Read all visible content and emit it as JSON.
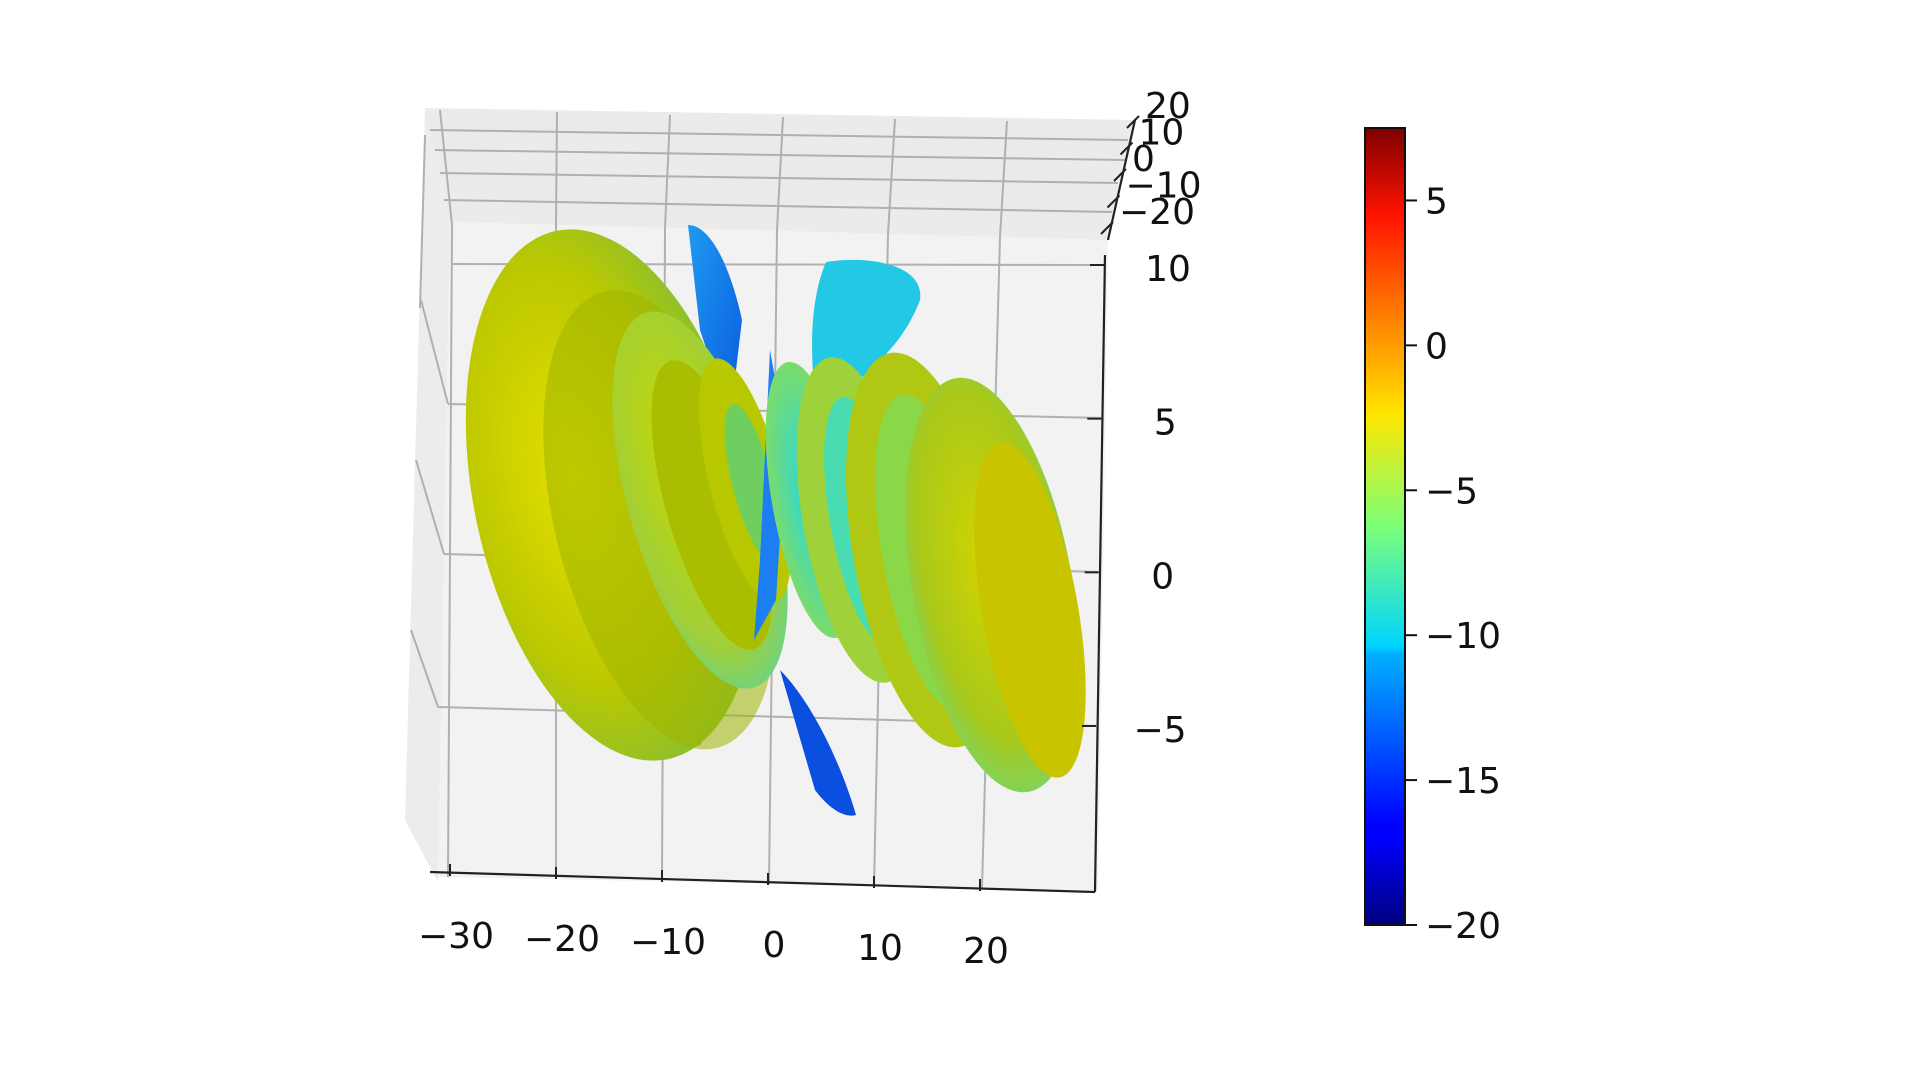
{
  "chart_data": {
    "type": "surface3d",
    "title": "",
    "description_free": true,
    "x_ticks": [
      "−30",
      "−20",
      "−10",
      "0",
      "10",
      "20"
    ],
    "x_tick_values": [
      -30,
      -20,
      -10,
      0,
      10,
      20
    ],
    "y_ticks": [
      "20",
      "10",
      "0",
      "−10",
      "−20"
    ],
    "y_tick_values": [
      20,
      10,
      0,
      -10,
      -20
    ],
    "z_ticks": [
      "10",
      "5",
      "0",
      "−5"
    ],
    "z_tick_values": [
      10,
      5,
      0,
      -5
    ],
    "grid": true,
    "colormap": "jet",
    "colorbar": {
      "ticks": [
        "5",
        "0",
        "−5",
        "−10",
        "−15",
        "−20"
      ],
      "tick_values": [
        5,
        0,
        -5,
        -10,
        -15,
        -20
      ],
      "range": [
        -20,
        7.5
      ],
      "placement": "right"
    },
    "lobes": [
      {
        "side": "left",
        "x_center": -20,
        "peak_value": -2,
        "count": 1
      },
      {
        "side": "left",
        "x_center": -10,
        "peak_value": -4,
        "count": 2
      },
      {
        "side": "right",
        "x_center": 8,
        "peak_value": -6,
        "count": 3
      },
      {
        "side": "right",
        "x_center": 20,
        "peak_value": -2,
        "count": 2
      }
    ]
  }
}
